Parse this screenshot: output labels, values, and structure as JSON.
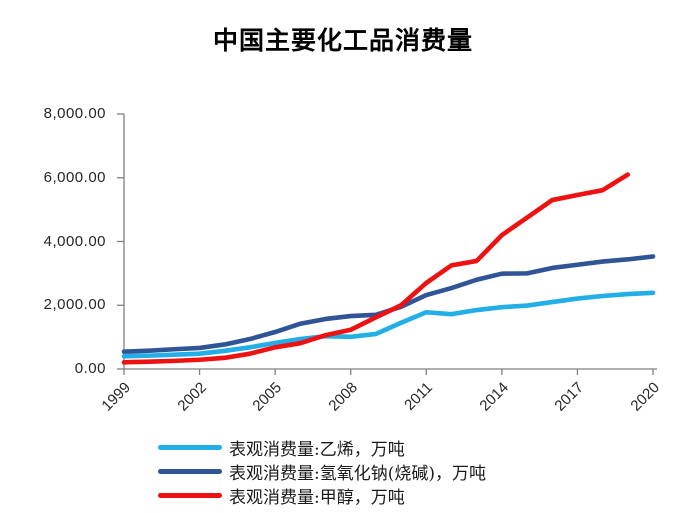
{
  "chart_data": {
    "type": "line",
    "title": "中国主要化工品消费量",
    "xlabel": "",
    "ylabel": "",
    "xlim": [
      1999,
      2020
    ],
    "ylim": [
      0,
      8000
    ],
    "grid": false,
    "legend_position": "bottom-left",
    "axis_color": "#7F7F7F",
    "label_color": "#262626",
    "x_ticks": [
      1999,
      2002,
      2005,
      2008,
      2011,
      2014,
      2017,
      2020
    ],
    "x_tick_labels": [
      "1999",
      "2002",
      "2005",
      "2008",
      "2011",
      "2014",
      "2017",
      "2020"
    ],
    "y_ticks": [
      0,
      2000,
      4000,
      6000,
      8000
    ],
    "y_tick_labels": [
      "0.00",
      "2,000.00",
      "4,000.00",
      "6,000.00",
      "8,000.00"
    ],
    "series": [
      {
        "name": "表观消费量:乙烯，万吨",
        "color": "#22AEE6",
        "years": [
          1999,
          2000,
          2001,
          2002,
          2003,
          2004,
          2005,
          2006,
          2007,
          2008,
          2009,
          2010,
          2011,
          2012,
          2013,
          2014,
          2015,
          2016,
          2017,
          2018,
          2019,
          2020
        ],
        "values": [
          400,
          420,
          450,
          480,
          570,
          680,
          820,
          940,
          1030,
          1010,
          1100,
          1450,
          1780,
          1720,
          1850,
          1940,
          1990,
          2100,
          2210,
          2290,
          2350,
          2390
        ]
      },
      {
        "name": "表观消费量:氢氧化钠(烧碱)，万吨",
        "color": "#2F5597",
        "years": [
          1999,
          2000,
          2001,
          2002,
          2003,
          2004,
          2005,
          2006,
          2007,
          2008,
          2009,
          2010,
          2011,
          2012,
          2013,
          2014,
          2015,
          2016,
          2017,
          2018,
          2019,
          2020
        ],
        "values": [
          545,
          575,
          620,
          660,
          770,
          940,
          1160,
          1420,
          1570,
          1660,
          1700,
          1950,
          2320,
          2540,
          2800,
          2990,
          3000,
          3170,
          3270,
          3370,
          3440,
          3530
        ]
      },
      {
        "name": "表观消费量:甲醇，万吨",
        "color": "#EE1111",
        "years": [
          1999,
          2000,
          2001,
          2002,
          2003,
          2004,
          2005,
          2006,
          2007,
          2008,
          2009,
          2010,
          2011,
          2012,
          2013,
          2014,
          2015,
          2016,
          2017,
          2018,
          2019
        ],
        "values": [
          210,
          230,
          255,
          290,
          350,
          480,
          680,
          810,
          1060,
          1230,
          1620,
          2000,
          2700,
          3250,
          3390,
          4200,
          4750,
          5300,
          5460,
          5610,
          6100
        ]
      }
    ]
  }
}
